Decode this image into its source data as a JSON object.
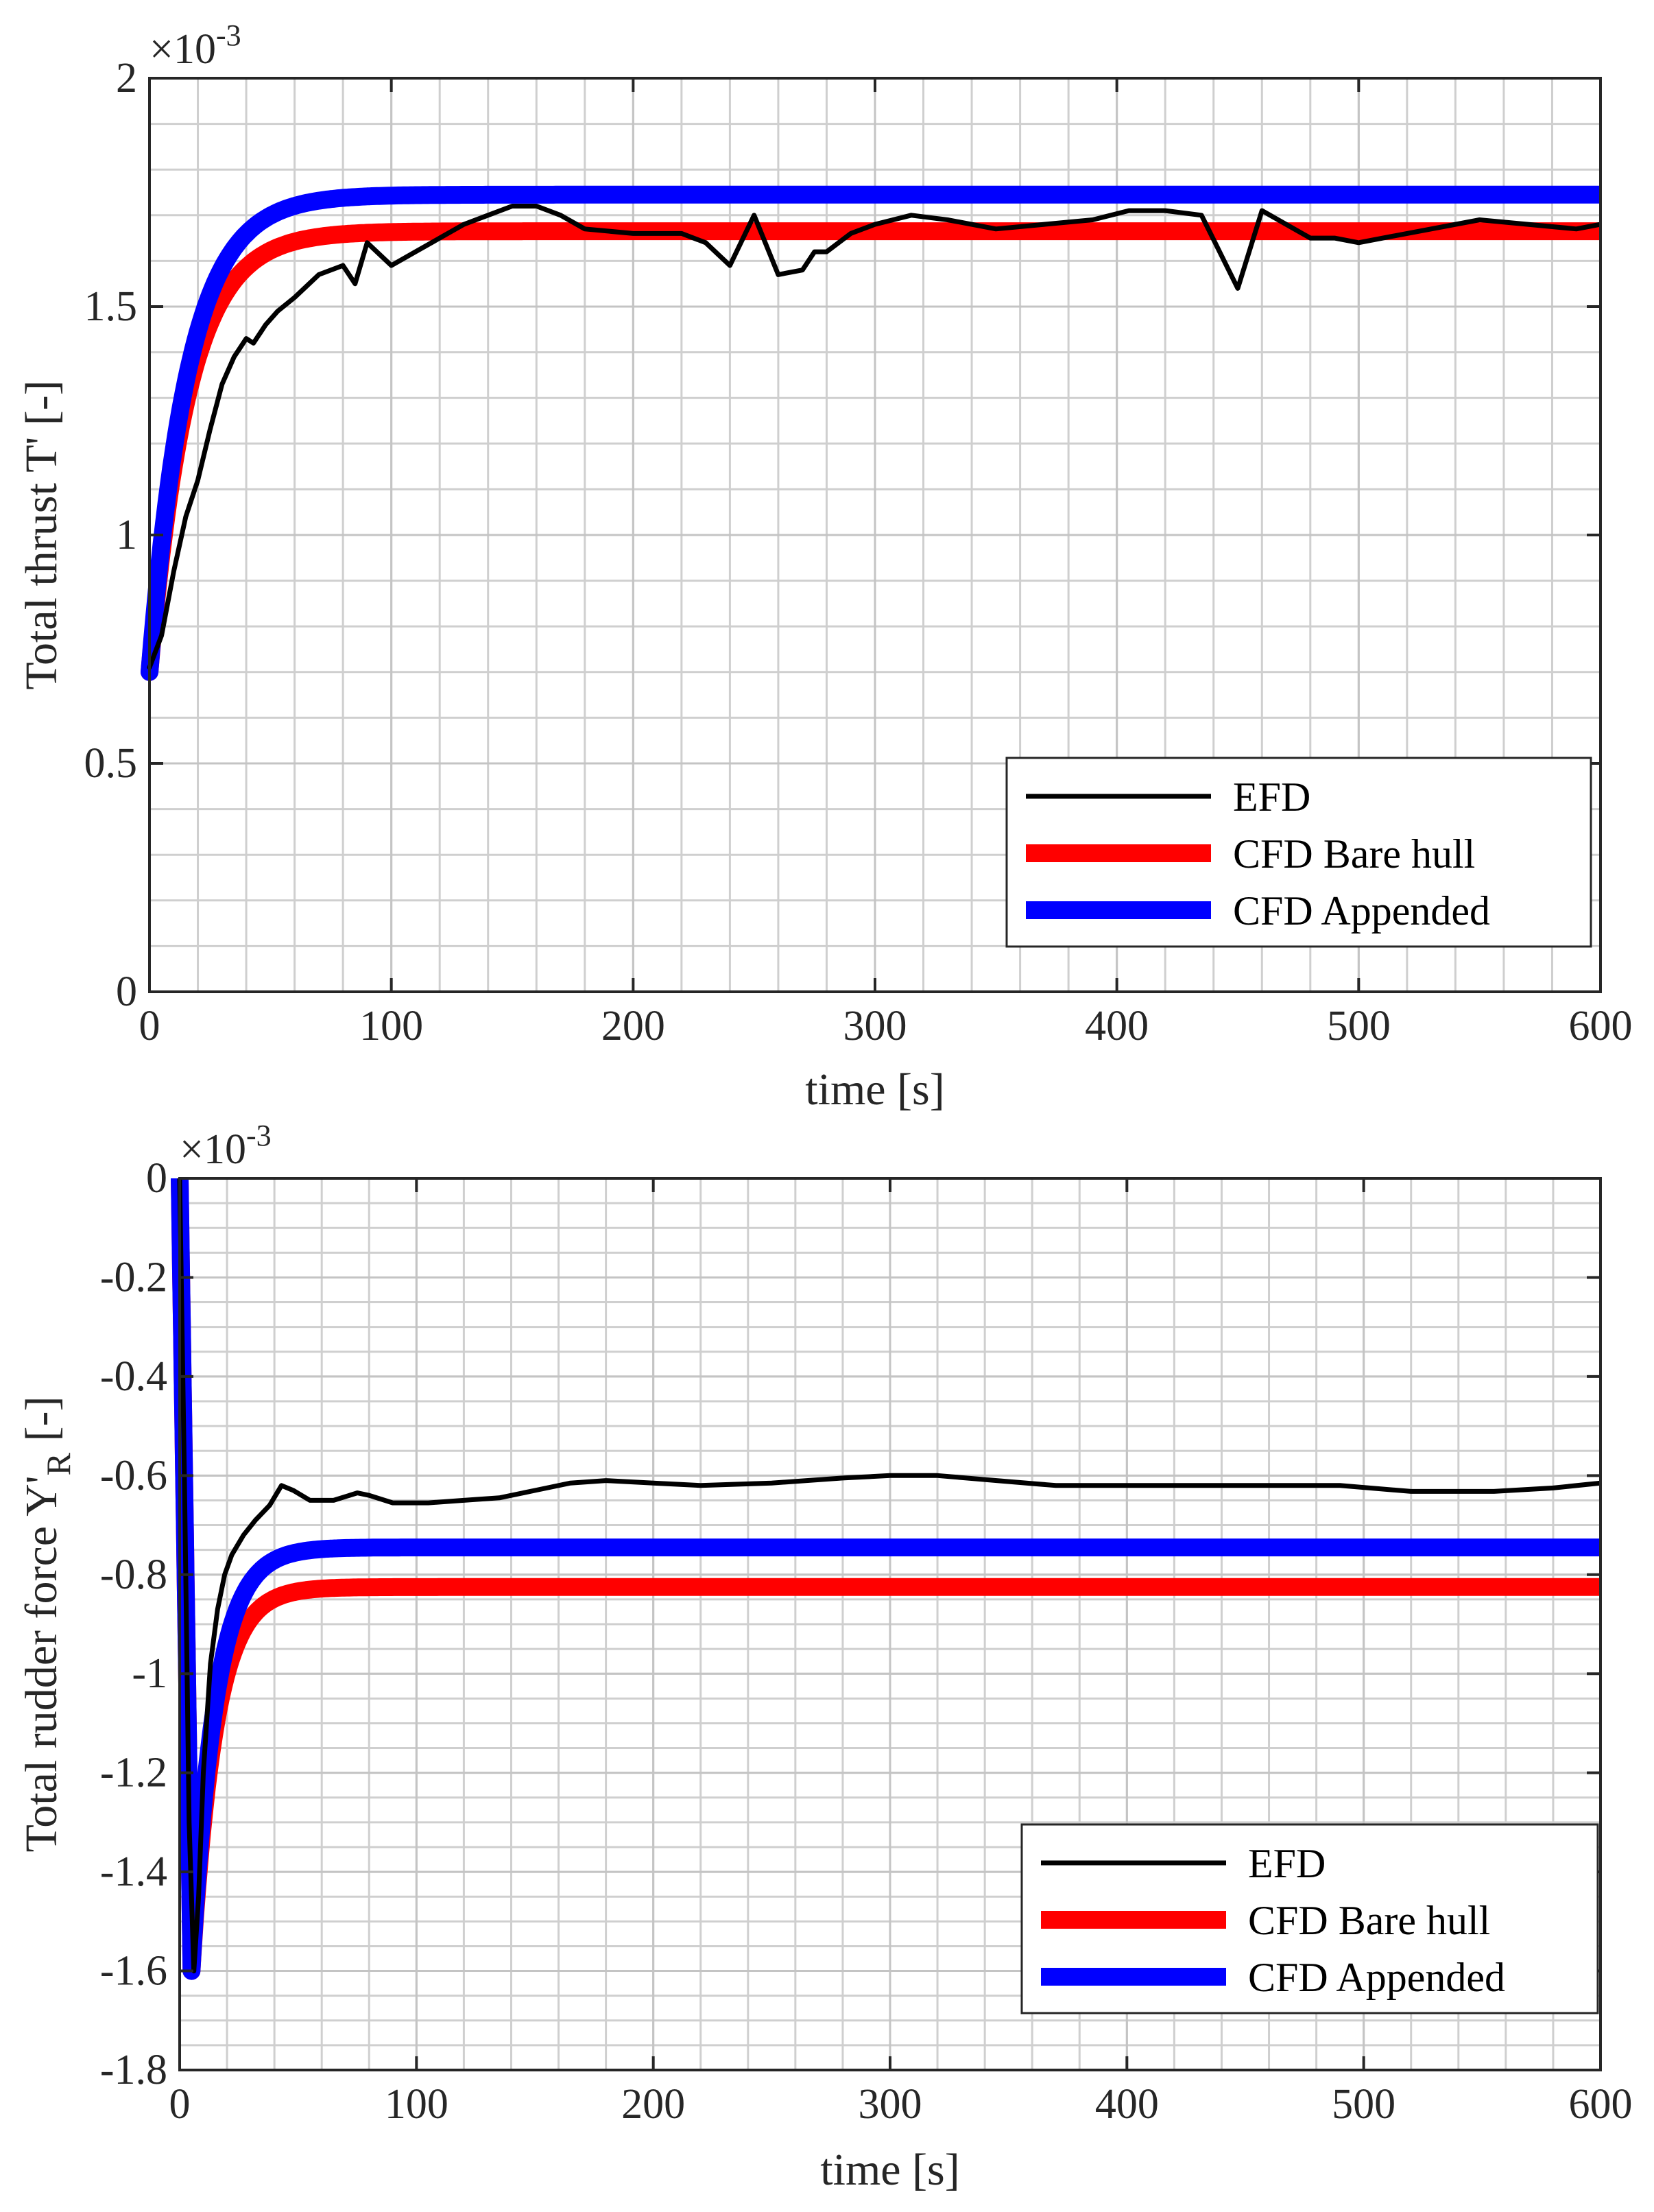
{
  "chart_data": [
    {
      "type": "line",
      "xlabel": "time [s]",
      "ylabel": "Total thrust T' [-]",
      "exponent_label": "×10",
      "exponent_power": "-3",
      "xlim": [
        0,
        600
      ],
      "ylim": [
        0,
        2
      ],
      "xticks": [
        0,
        100,
        200,
        300,
        400,
        500,
        600
      ],
      "yticks": [
        0,
        0.5,
        1,
        1.5,
        2
      ],
      "ytick_labels": [
        "0",
        "0.5",
        "1",
        "1.5",
        "2"
      ],
      "grid": true,
      "legend_position": "bottom-right",
      "series": [
        {
          "name": "EFD",
          "color": "#000000",
          "x": [
            0,
            5,
            10,
            15,
            20,
            25,
            30,
            35,
            40,
            43,
            48,
            53,
            60,
            70,
            80,
            85,
            90,
            100,
            110,
            120,
            130,
            140,
            150,
            160,
            170,
            180,
            200,
            220,
            230,
            240,
            250,
            260,
            270,
            275,
            280,
            290,
            300,
            315,
            330,
            350,
            370,
            390,
            405,
            420,
            435,
            450,
            460,
            470,
            480,
            490,
            500,
            520,
            550,
            570,
            590,
            600
          ],
          "y": [
            0.71,
            0.78,
            0.92,
            1.04,
            1.12,
            1.23,
            1.33,
            1.39,
            1.43,
            1.42,
            1.46,
            1.49,
            1.52,
            1.57,
            1.59,
            1.55,
            1.64,
            1.59,
            1.62,
            1.65,
            1.68,
            1.7,
            1.72,
            1.72,
            1.7,
            1.67,
            1.66,
            1.66,
            1.64,
            1.59,
            1.7,
            1.57,
            1.58,
            1.62,
            1.62,
            1.66,
            1.68,
            1.7,
            1.69,
            1.67,
            1.68,
            1.69,
            1.71,
            1.71,
            1.7,
            1.54,
            1.71,
            1.68,
            1.65,
            1.65,
            1.64,
            1.66,
            1.69,
            1.68,
            1.67,
            1.68
          ]
        },
        {
          "name": "CFD Bare hull",
          "color": "#ff0000",
          "y0": 0.7,
          "yinf": 1.665,
          "tau": 16
        },
        {
          "name": "CFD Appended",
          "color": "#0000ff",
          "y0": 0.7,
          "yinf": 1.745,
          "tau": 16
        }
      ]
    },
    {
      "type": "line",
      "xlabel": "time [s]",
      "ylabel": "Total rudder force Y'",
      "ylabel_subscript": "R",
      "ylabel_suffix": " [-]",
      "exponent_label": "×10",
      "exponent_power": "-3",
      "xlim": [
        0,
        600
      ],
      "ylim": [
        -1.8,
        0
      ],
      "xticks": [
        0,
        100,
        200,
        300,
        400,
        500,
        600
      ],
      "yticks": [
        -1.8,
        -1.6,
        -1.4,
        -1.2,
        -1,
        -0.8,
        -0.6,
        -0.4,
        -0.2,
        0
      ],
      "ytick_labels": [
        "-1.8",
        "-1.6",
        "-1.4",
        "-1.2",
        "-1",
        "-0.8",
        "-0.6",
        "-0.4",
        "-0.2",
        "0"
      ],
      "grid": true,
      "legend_position": "bottom-right",
      "series": [
        {
          "name": "EFD",
          "color": "#000000",
          "x": [
            0,
            2,
            4,
            6,
            8,
            10,
            13,
            16,
            19,
            22,
            27,
            32,
            38,
            43,
            48,
            55,
            65,
            75,
            80,
            90,
            105,
            120,
            135,
            150,
            165,
            180,
            200,
            220,
            250,
            280,
            300,
            320,
            345,
            370,
            400,
            430,
            460,
            490,
            520,
            555,
            580,
            600
          ],
          "y": [
            0,
            -0.6,
            -1.3,
            -1.6,
            -1.45,
            -1.2,
            -0.98,
            -0.87,
            -0.8,
            -0.76,
            -0.72,
            -0.69,
            -0.66,
            -0.62,
            -0.63,
            -0.65,
            -0.65,
            -0.635,
            -0.64,
            -0.655,
            -0.655,
            -0.65,
            -0.645,
            -0.63,
            -0.615,
            -0.61,
            -0.615,
            -0.62,
            -0.615,
            -0.605,
            -0.6,
            -0.6,
            -0.61,
            -0.62,
            -0.62,
            -0.62,
            -0.62,
            -0.62,
            -0.632,
            -0.632,
            -0.625,
            -0.615
          ]
        },
        {
          "name": "CFD Bare hull",
          "color": "#ff0000",
          "tmin": 5,
          "ymin": -1.6,
          "yinf": -0.825,
          "tau": 10
        },
        {
          "name": "CFD Appended",
          "color": "#0000ff",
          "tmin": 5,
          "ymin": -1.6,
          "yinf": -0.745,
          "tau": 10
        }
      ]
    }
  ]
}
